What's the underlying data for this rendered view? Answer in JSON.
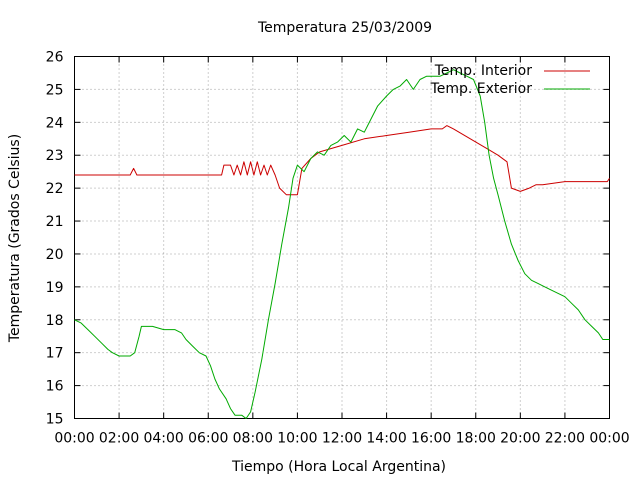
{
  "chart_data": {
    "type": "line",
    "title": "Temperatura 25/03/2009",
    "xlabel": "Tiempo (Hora Local Argentina)",
    "ylabel": "Temperatura (Grados Celsius)",
    "xlim": [
      0,
      24
    ],
    "ylim": [
      15,
      26
    ],
    "x_ticks": [
      "00:00",
      "02:00",
      "04:00",
      "06:00",
      "08:00",
      "10:00",
      "12:00",
      "14:00",
      "16:00",
      "18:00",
      "20:00",
      "22:00",
      "00:00"
    ],
    "y_ticks": [
      15,
      16,
      17,
      18,
      19,
      20,
      21,
      22,
      23,
      24,
      25,
      26
    ],
    "grid": true,
    "legend_position": "top-right",
    "series": [
      {
        "name": "Temp. Interior",
        "color": "#cc0000",
        "points": [
          [
            0,
            22.4
          ],
          [
            2.5,
            22.4
          ],
          [
            2.65,
            22.6
          ],
          [
            2.8,
            22.4
          ],
          [
            6.6,
            22.4
          ],
          [
            6.7,
            22.7
          ],
          [
            7.0,
            22.7
          ],
          [
            7.15,
            22.4
          ],
          [
            7.3,
            22.7
          ],
          [
            7.45,
            22.4
          ],
          [
            7.6,
            22.8
          ],
          [
            7.75,
            22.4
          ],
          [
            7.9,
            22.8
          ],
          [
            8.05,
            22.4
          ],
          [
            8.2,
            22.8
          ],
          [
            8.35,
            22.4
          ],
          [
            8.5,
            22.7
          ],
          [
            8.65,
            22.4
          ],
          [
            8.8,
            22.7
          ],
          [
            9.0,
            22.4
          ],
          [
            9.2,
            22.0
          ],
          [
            9.5,
            21.8
          ],
          [
            10.0,
            21.8
          ],
          [
            10.2,
            22.6
          ],
          [
            10.6,
            22.9
          ],
          [
            11.0,
            23.1
          ],
          [
            12.0,
            23.3
          ],
          [
            13.0,
            23.5
          ],
          [
            14.0,
            23.6
          ],
          [
            15.0,
            23.7
          ],
          [
            16.0,
            23.8
          ],
          [
            16.5,
            23.8
          ],
          [
            16.7,
            23.9
          ],
          [
            17.0,
            23.8
          ],
          [
            18.0,
            23.4
          ],
          [
            18.5,
            23.2
          ],
          [
            19.0,
            23.0
          ],
          [
            19.4,
            22.8
          ],
          [
            19.6,
            22.0
          ],
          [
            20.0,
            21.9
          ],
          [
            20.4,
            22.0
          ],
          [
            20.7,
            22.1
          ],
          [
            21.0,
            22.1
          ],
          [
            22.0,
            22.2
          ],
          [
            23.9,
            22.2
          ],
          [
            24,
            22.3
          ]
        ]
      },
      {
        "name": "Temp. Exterior",
        "color": "#00aa00",
        "points": [
          [
            0,
            18.0
          ],
          [
            0.3,
            17.9
          ],
          [
            0.6,
            17.7
          ],
          [
            0.9,
            17.5
          ],
          [
            1.2,
            17.3
          ],
          [
            1.5,
            17.1
          ],
          [
            1.7,
            17.0
          ],
          [
            2.0,
            16.9
          ],
          [
            2.5,
            16.9
          ],
          [
            2.7,
            17.0
          ],
          [
            2.9,
            17.5
          ],
          [
            3.0,
            17.8
          ],
          [
            3.5,
            17.8
          ],
          [
            4.0,
            17.7
          ],
          [
            4.5,
            17.7
          ],
          [
            4.8,
            17.6
          ],
          [
            5.0,
            17.4
          ],
          [
            5.3,
            17.2
          ],
          [
            5.6,
            17.0
          ],
          [
            5.9,
            16.9
          ],
          [
            6.1,
            16.6
          ],
          [
            6.3,
            16.2
          ],
          [
            6.5,
            15.9
          ],
          [
            6.8,
            15.6
          ],
          [
            7.0,
            15.3
          ],
          [
            7.2,
            15.1
          ],
          [
            7.5,
            15.1
          ],
          [
            7.7,
            15.0
          ],
          [
            7.9,
            15.2
          ],
          [
            8.1,
            15.8
          ],
          [
            8.4,
            16.8
          ],
          [
            8.7,
            18.0
          ],
          [
            9.0,
            19.1
          ],
          [
            9.3,
            20.3
          ],
          [
            9.6,
            21.4
          ],
          [
            9.8,
            22.3
          ],
          [
            10.0,
            22.7
          ],
          [
            10.3,
            22.5
          ],
          [
            10.6,
            22.9
          ],
          [
            10.9,
            23.1
          ],
          [
            11.2,
            23.0
          ],
          [
            11.5,
            23.3
          ],
          [
            11.8,
            23.4
          ],
          [
            12.1,
            23.6
          ],
          [
            12.4,
            23.4
          ],
          [
            12.7,
            23.8
          ],
          [
            13.0,
            23.7
          ],
          [
            13.3,
            24.1
          ],
          [
            13.6,
            24.5
          ],
          [
            14.0,
            24.8
          ],
          [
            14.3,
            25.0
          ],
          [
            14.6,
            25.1
          ],
          [
            14.9,
            25.3
          ],
          [
            15.2,
            25.0
          ],
          [
            15.5,
            25.3
          ],
          [
            15.8,
            25.4
          ],
          [
            16.1,
            25.4
          ],
          [
            16.4,
            25.4
          ],
          [
            16.7,
            25.5
          ],
          [
            17.0,
            25.6
          ],
          [
            17.3,
            25.5
          ],
          [
            17.6,
            25.4
          ],
          [
            17.9,
            25.3
          ],
          [
            18.2,
            24.8
          ],
          [
            18.4,
            24.0
          ],
          [
            18.6,
            23.0
          ],
          [
            18.8,
            22.3
          ],
          [
            19.0,
            21.8
          ],
          [
            19.3,
            21.0
          ],
          [
            19.6,
            20.3
          ],
          [
            19.9,
            19.8
          ],
          [
            20.2,
            19.4
          ],
          [
            20.5,
            19.2
          ],
          [
            20.8,
            19.1
          ],
          [
            21.1,
            19.0
          ],
          [
            21.4,
            18.9
          ],
          [
            21.7,
            18.8
          ],
          [
            22.0,
            18.7
          ],
          [
            22.3,
            18.5
          ],
          [
            22.6,
            18.3
          ],
          [
            22.9,
            18.0
          ],
          [
            23.2,
            17.8
          ],
          [
            23.5,
            17.6
          ],
          [
            23.7,
            17.4
          ],
          [
            24.0,
            17.4
          ]
        ]
      }
    ]
  }
}
